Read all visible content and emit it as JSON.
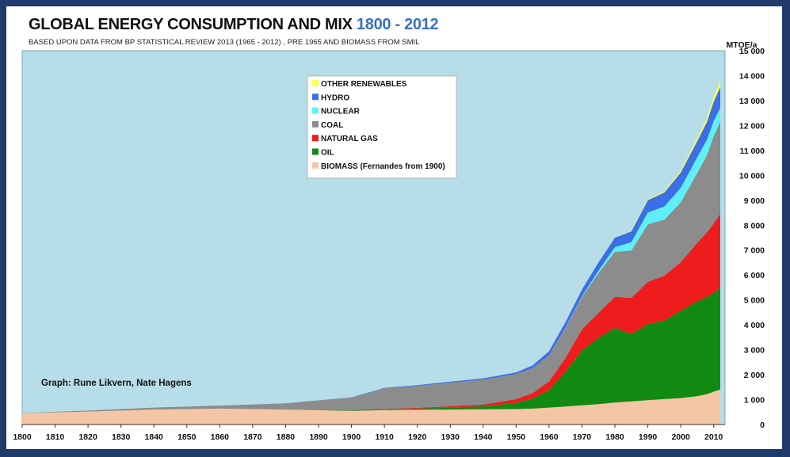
{
  "title": "GLOBAL ENERGY CONSUMPTION AND MIX",
  "title_highlight": "1800 - 2012",
  "subtitle": "BASED UPON DATA FROM BP STATISTICAL REVIEW 2013 (1965 - 2012) , PRE 1965 AND BIOMASS FROM SMIL",
  "credit": "Graph: Rune Likvern, Nate Hagens",
  "chart_data": {
    "type": "area",
    "stacked": true,
    "ylabel": "MTOE/a",
    "xlim": [
      1800,
      2012
    ],
    "ylim": [
      0,
      15000
    ],
    "x_ticks": [
      1800,
      1810,
      1820,
      1830,
      1840,
      1850,
      1860,
      1870,
      1880,
      1890,
      1900,
      1910,
      1920,
      1930,
      1940,
      1950,
      1960,
      1970,
      1980,
      1990,
      2000,
      2010
    ],
    "y_ticks": [
      {
        "value": 0,
        "label": "0"
      },
      {
        "value": 1000,
        "label": "1 000"
      },
      {
        "value": 2000,
        "label": "2 000"
      },
      {
        "value": 3000,
        "label": "3 000"
      },
      {
        "value": 4000,
        "label": "4 000"
      },
      {
        "value": 5000,
        "label": "5 000"
      },
      {
        "value": 6000,
        "label": "6 000"
      },
      {
        "value": 7000,
        "label": "7 000"
      },
      {
        "value": 8000,
        "label": "8 000"
      },
      {
        "value": 9000,
        "label": "9 000"
      },
      {
        "value": 10000,
        "label": "10 000"
      },
      {
        "value": 11000,
        "label": "11 000"
      },
      {
        "value": 12000,
        "label": "12 000"
      },
      {
        "value": 13000,
        "label": "13 000"
      },
      {
        "value": 14000,
        "label": "14 000"
      },
      {
        "value": 15000,
        "label": "15 000"
      }
    ],
    "grid": false,
    "legend_position": "top-center",
    "plot_background": "#b7dde8",
    "x": [
      1800,
      1820,
      1840,
      1860,
      1880,
      1900,
      1910,
      1920,
      1930,
      1940,
      1950,
      1955,
      1960,
      1965,
      1970,
      1975,
      1980,
      1985,
      1990,
      1995,
      2000,
      2005,
      2008,
      2010,
      2012
    ],
    "series": [
      {
        "name": "BIOMASS (Fernandes from 1900)",
        "color": "#f5c6a5",
        "values": [
          450,
          520,
          600,
          640,
          600,
          550,
          580,
          590,
          600,
          610,
          620,
          640,
          680,
          720,
          770,
          820,
          880,
          930,
          980,
          1020,
          1060,
          1140,
          1220,
          1320,
          1400
        ]
      },
      {
        "name": "OIL",
        "color": "#128a12",
        "values": [
          0,
          0,
          0,
          0,
          0,
          20,
          30,
          50,
          80,
          120,
          250,
          400,
          700,
          1400,
          2200,
          2650,
          3000,
          2700,
          3050,
          3150,
          3500,
          3800,
          3900,
          3950,
          4100
        ]
      },
      {
        "name": "NATURAL GAS",
        "color": "#ee1c1c",
        "values": [
          0,
          0,
          0,
          0,
          0,
          10,
          20,
          30,
          50,
          70,
          150,
          220,
          350,
          550,
          850,
          1000,
          1250,
          1450,
          1700,
          1800,
          1950,
          2350,
          2600,
          2800,
          2950
        ]
      },
      {
        "name": "COAL",
        "color": "#8c8c8c",
        "values": [
          10,
          40,
          80,
          120,
          250,
          500,
          820,
          880,
          950,
          1000,
          1000,
          1000,
          1050,
          1200,
          1300,
          1600,
          1800,
          1900,
          2300,
          2250,
          2400,
          2800,
          3100,
          3500,
          3700
        ]
      },
      {
        "name": "NUCLEAR",
        "color": "#5ff0f7",
        "values": [
          0,
          0,
          0,
          0,
          0,
          0,
          0,
          0,
          0,
          0,
          0,
          0,
          0,
          15,
          30,
          100,
          190,
          340,
          480,
          530,
          590,
          630,
          620,
          610,
          560
        ]
      },
      {
        "name": "HYDRO",
        "color": "#3a6fe6",
        "values": [
          0,
          0,
          0,
          0,
          0,
          10,
          20,
          30,
          40,
          50,
          70,
          110,
          160,
          220,
          270,
          330,
          380,
          430,
          490,
          560,
          610,
          650,
          720,
          780,
          830
        ]
      },
      {
        "name": "OTHER RENEWABLES",
        "color": "#ffff4d",
        "values": [
          0,
          0,
          0,
          0,
          0,
          0,
          0,
          0,
          0,
          0,
          0,
          0,
          0,
          0,
          0,
          0,
          10,
          20,
          40,
          60,
          80,
          120,
          150,
          180,
          240
        ]
      }
    ]
  }
}
